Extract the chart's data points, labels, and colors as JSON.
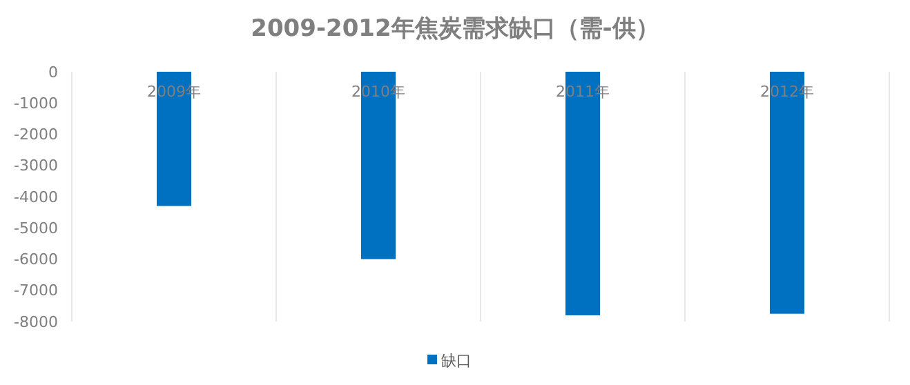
{
  "chart_data": {
    "type": "bar",
    "title": "2009-2012年焦炭需求缺口（需-供）",
    "categories": [
      "2009年",
      "2010年",
      "2011年",
      "2012年"
    ],
    "series": [
      {
        "name": "缺口",
        "color": "#0070c0",
        "values": [
          -4300,
          -6000,
          -7800,
          -7750
        ]
      }
    ],
    "ylim": [
      -8000,
      0
    ],
    "yticks": [
      0,
      -1000,
      -2000,
      -3000,
      -4000,
      -5000,
      -6000,
      -7000,
      -8000
    ],
    "grid": "x",
    "legend": "bottom"
  }
}
